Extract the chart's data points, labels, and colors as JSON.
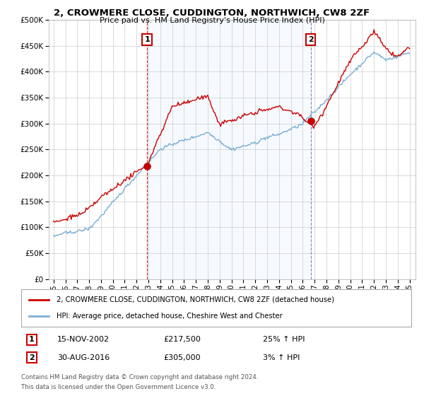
{
  "title": "2, CROWMERE CLOSE, CUDDINGTON, NORTHWICH, CW8 2ZF",
  "subtitle": "Price paid vs. HM Land Registry's House Price Index (HPI)",
  "ylim": [
    0,
    500000
  ],
  "yticks": [
    0,
    50000,
    100000,
    150000,
    200000,
    250000,
    300000,
    350000,
    400000,
    450000,
    500000
  ],
  "hpi_color": "#7bafd4",
  "price_color": "#cc0000",
  "vline1_color": "#cc0000",
  "vline2_color": "#555599",
  "shade_color": "#ddeeff",
  "background_color": "#ffffff",
  "grid_color": "#cccccc",
  "legend_entry1": "2, CROWMERE CLOSE, CUDDINGTON, NORTHWICH, CW8 2ZF (detached house)",
  "legend_entry2": "HPI: Average price, detached house, Cheshire West and Chester",
  "sale1_label": "1",
  "sale1_date": "15-NOV-2002",
  "sale1_price": "£217,500",
  "sale1_hpi": "25% ↑ HPI",
  "sale1_year": 2002.88,
  "sale1_price_val": 217500,
  "sale2_label": "2",
  "sale2_date": "30-AUG-2016",
  "sale2_price": "£305,000",
  "sale2_hpi": "3% ↑ HPI",
  "sale2_year": 2016.67,
  "sale2_price_val": 305000,
  "footnote1": "Contains HM Land Registry data © Crown copyright and database right 2024.",
  "footnote2": "This data is licensed under the Open Government Licence v3.0."
}
